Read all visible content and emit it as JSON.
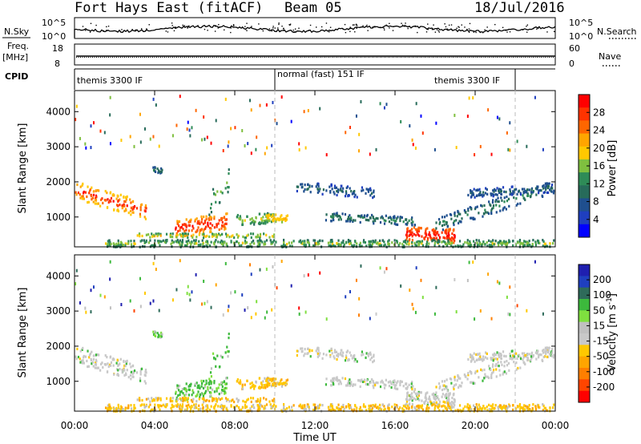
{
  "header": {
    "radar": "Fort Hays East (fitACF)",
    "beam": "Beam 05",
    "date": "18/Jul/2016"
  },
  "top_panels": {
    "nsky_label": "N.Sky",
    "nsky_ticks": [
      "10^5",
      "10^0"
    ],
    "nsearch_label": "N.Search",
    "nsearch_ticks": [
      "10^5",
      "10^0"
    ],
    "freq_label": "Freq.",
    "freq_unit": "[MHz]",
    "freq_ticks": [
      "18",
      "8"
    ],
    "nave_label": "Nave",
    "nave_ticks": [
      "60",
      "0"
    ],
    "cpid_label": "CPID",
    "cpid_segments": [
      "themis 3300 IF",
      "normal (fast) 151 IF",
      "themis 3300 IF"
    ]
  },
  "chart_data": [
    {
      "type": "heatmap",
      "panel": "power",
      "xlabel": "",
      "ylabel": "Slant Range [km]",
      "x_ticks": [
        "00:00",
        "04:00",
        "08:00",
        "12:00",
        "16:00",
        "20:00",
        "00:00"
      ],
      "y_ticks": [
        "1000",
        "2000",
        "3000",
        "4000"
      ],
      "ylim": [
        150,
        4600
      ],
      "colorbar_label": "Power [dB]",
      "colorbar_ticks": [
        "28",
        "24",
        "20",
        "16",
        "12",
        "8",
        "4"
      ],
      "colorbar_colors": [
        "#ff0000",
        "#ff3300",
        "#ff6600",
        "#ffa500",
        "#ffc800",
        "#7fbf3f",
        "#2e8b57",
        "#276b5a",
        "#1f4f8f",
        "#1f3fbf",
        "#0000ff"
      ],
      "mode_change_hours": [
        10.0,
        22.0
      ]
    },
    {
      "type": "heatmap",
      "panel": "velocity",
      "xlabel": "Time UT",
      "ylabel": "Slant Range [km]",
      "x_ticks": [
        "00:00",
        "04:00",
        "08:00",
        "12:00",
        "16:00",
        "20:00",
        "00:00"
      ],
      "y_ticks": [
        "1000",
        "2000",
        "3000",
        "4000"
      ],
      "ylim": [
        150,
        4600
      ],
      "colorbar_label": "Velocity [m s",
      "colorbar_sup": "-1",
      "colorbar_ticks": [
        "200",
        "100",
        "50",
        "15",
        "-15",
        "-50",
        "-100",
        "-200"
      ],
      "colorbar_colors": [
        "#1f1fb0",
        "#1f3fbf",
        "#2e6b5a",
        "#3cb93c",
        "#7fdf3f",
        "#c0c0c0",
        "#c8c8c8",
        "#ffc800",
        "#ffa500",
        "#ff7f00",
        "#ff4500",
        "#ff0000"
      ],
      "mode_change_hours": [
        10.0,
        22.0
      ]
    }
  ]
}
